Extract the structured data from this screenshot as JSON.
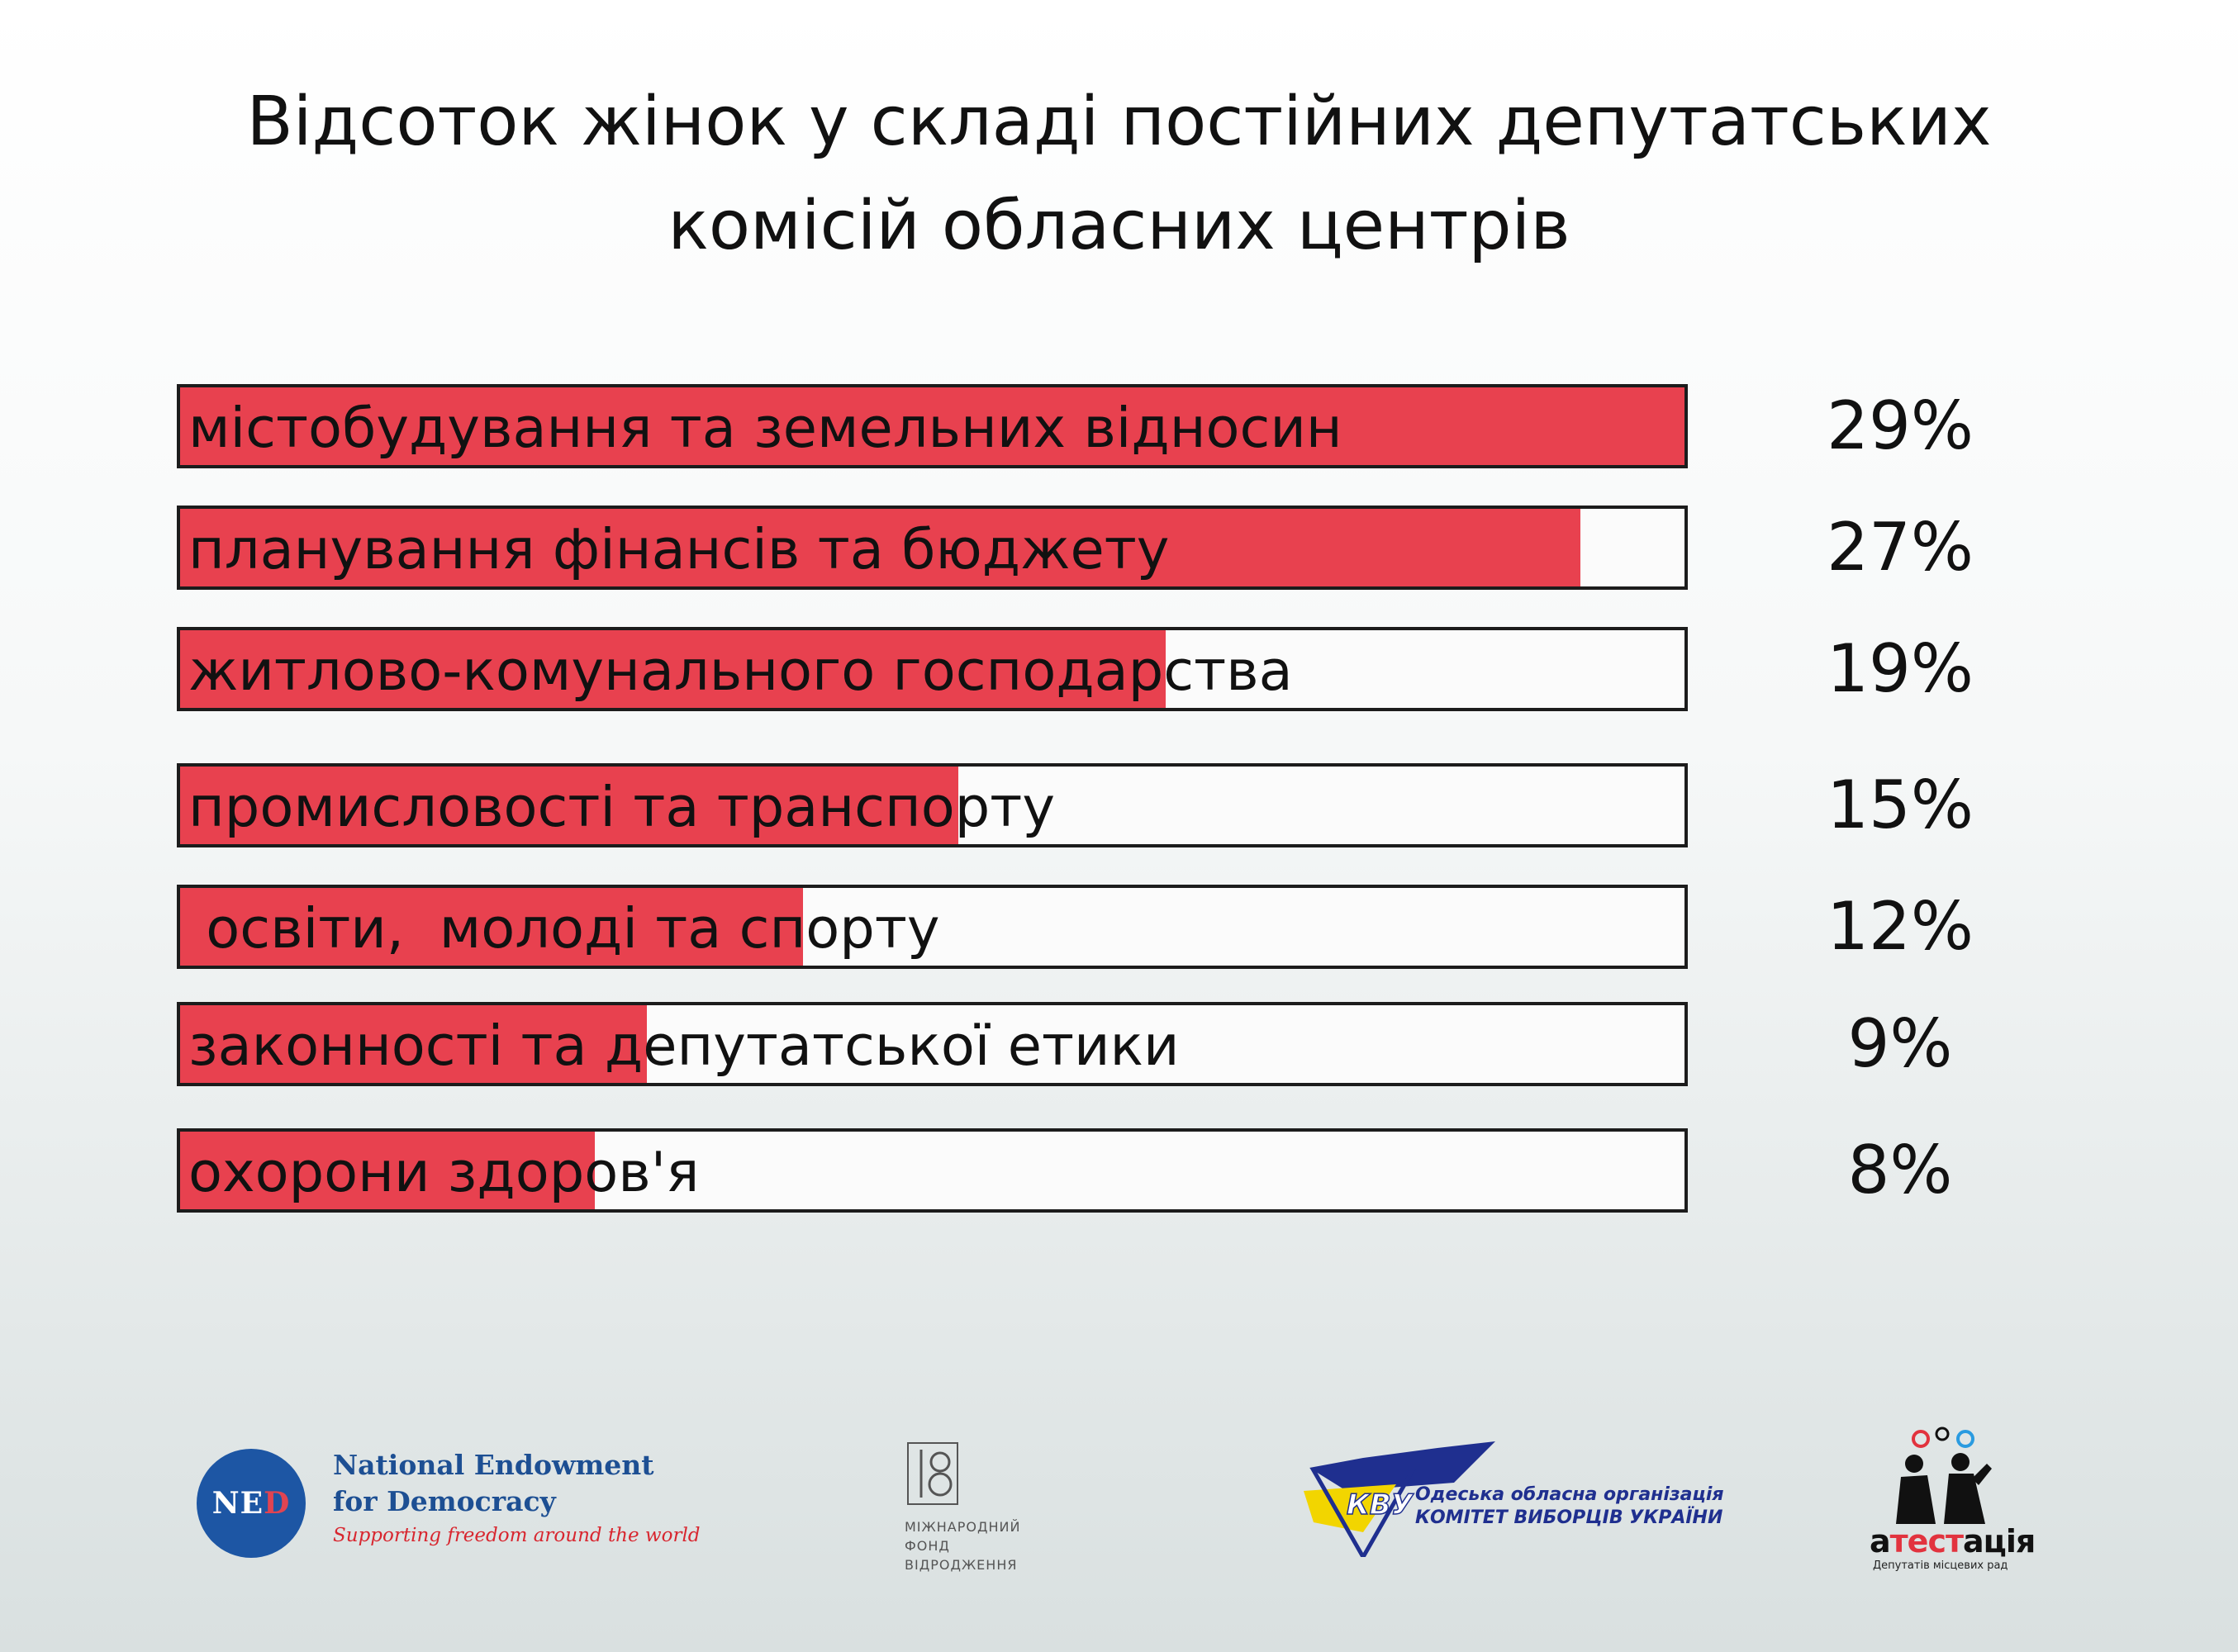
{
  "chart_data": {
    "type": "bar",
    "orientation": "horizontal",
    "title": [
      "Відсоток жінок у складі постійних депутатських",
      "комісій обласних центрів"
    ],
    "categories": [
      "містобудування та земельних відносин",
      "планування фінансів та бюджету",
      "житлово-комунального господарства",
      "промисловості та транспорту",
      " освіти,  молоді та спорту",
      "законності та депутатської етики",
      "охорони здоров'я"
    ],
    "values": [
      29,
      27,
      19,
      15,
      12,
      9,
      8
    ],
    "value_labels": [
      "29%",
      "27%",
      "19%",
      "15%",
      "12%",
      "9%",
      "8%"
    ],
    "unit": "%",
    "xlim": [
      0,
      29
    ],
    "bar_color": "#e8414f",
    "grid": false,
    "legend": "none"
  },
  "logos": {
    "ned": {
      "abbr_main": "NE",
      "abbr_accent": "D",
      "name_line1": "National Endowment",
      "name_line2": "for Democracy",
      "tagline": "Supporting freedom around the world",
      "colors": {
        "blue": "#1d56a4",
        "red": "#d8262f"
      }
    },
    "irf": {
      "lines": [
        "МІЖНАРОДНИЙ",
        "ФОНД",
        "ВІДРОДЖЕННЯ"
      ]
    },
    "cvu": {
      "emblem": "КВУ",
      "line1": "Одеська обласна організація",
      "line2": "КОМІТЕТ ВИБОРЦІВ УКРАЇНИ",
      "colors": {
        "blue": "#1f2f8f",
        "yellow": "#f2d500"
      }
    },
    "attestation": {
      "name_pre": "а",
      "name_accent": "тест",
      "name_post": "ація",
      "subtitle": "Депутатів місцевих рад",
      "colors": {
        "accent": "#e2333e",
        "circle_blue": "#2a9be0"
      }
    }
  }
}
